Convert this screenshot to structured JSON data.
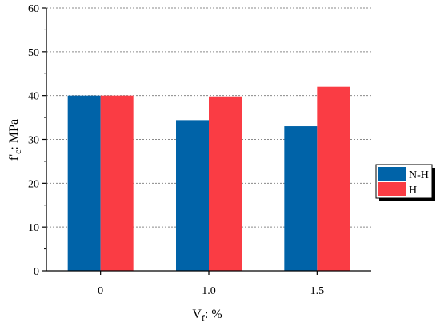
{
  "chart_data": {
    "type": "bar",
    "categories": [
      "0",
      "1.0",
      "1.5"
    ],
    "series": [
      {
        "name": "N-H",
        "values": [
          40.0,
          34.4,
          33.0
        ],
        "color": "#0063a8"
      },
      {
        "name": "H",
        "values": [
          40.0,
          39.8,
          42.0
        ],
        "color": "#fa3c44"
      }
    ],
    "ylim": [
      0,
      60
    ],
    "yticks": [
      0,
      10,
      20,
      30,
      40,
      50,
      60
    ],
    "ylabel": {
      "main": "f'",
      "sub": "c",
      "rest": ": MPa"
    },
    "xlabel": {
      "main": "V",
      "sub": "f",
      "rest": ": %"
    },
    "grid": true,
    "legend_position": "right"
  }
}
